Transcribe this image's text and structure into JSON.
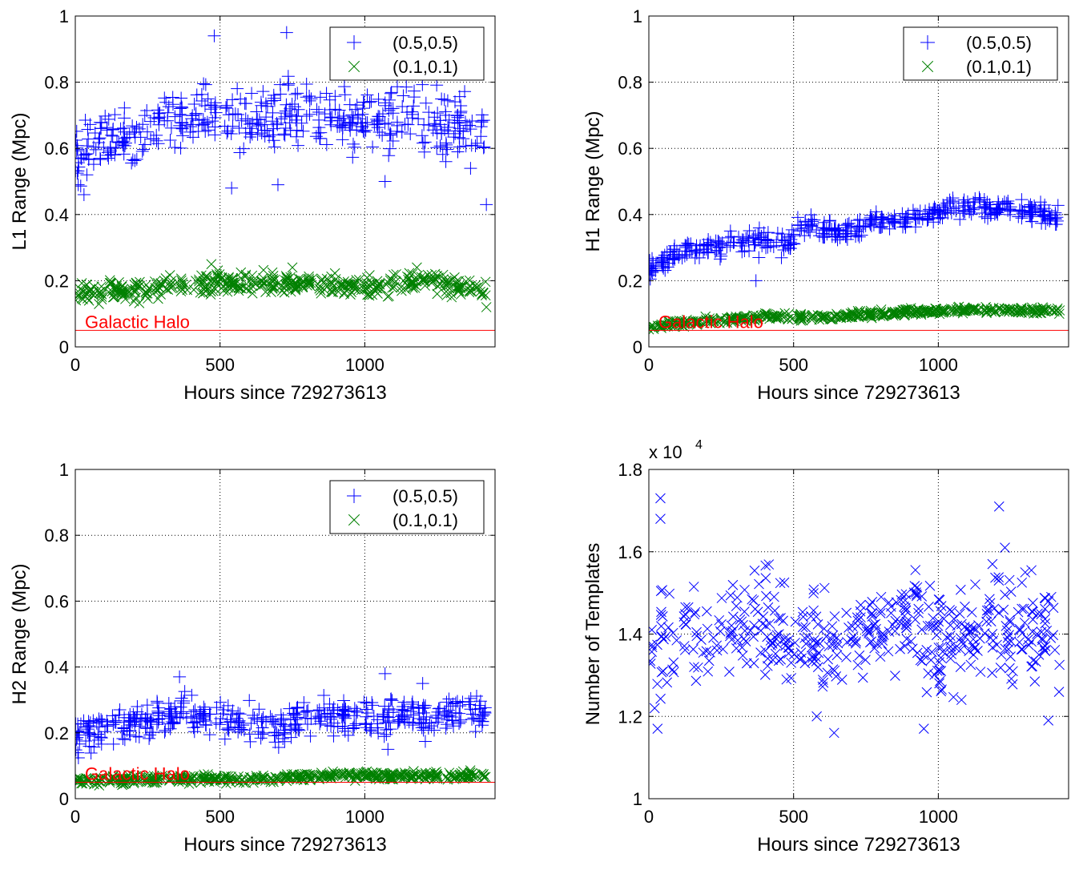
{
  "chart_data": [
    {
      "id": "L1",
      "type": "scatter",
      "xlabel": "Hours since 729273613",
      "ylabel": "L1 Range (Mpc)",
      "xlim": [
        0,
        1450
      ],
      "ylim": [
        0,
        1
      ],
      "xticks": [
        0,
        500,
        1000
      ],
      "yticks": [
        0,
        0.2,
        0.4,
        0.6,
        0.8,
        1
      ],
      "grid": true,
      "legend_position": "top-right",
      "exponent_label": "",
      "reference": {
        "label": "Galactic Halo",
        "value": 0.05,
        "color": "#ff0000"
      },
      "series": [
        {
          "name": "(0.5,0.5)",
          "marker": "plus",
          "color": "#0000ff",
          "anchors": [
            [
              0,
              0.6
            ],
            [
              100,
              0.62
            ],
            [
              200,
              0.63
            ],
            [
              300,
              0.67
            ],
            [
              400,
              0.72
            ],
            [
              500,
              0.7
            ],
            [
              600,
              0.67
            ],
            [
              700,
              0.7
            ],
            [
              800,
              0.73
            ],
            [
              900,
              0.7
            ],
            [
              1000,
              0.68
            ],
            [
              1100,
              0.71
            ],
            [
              1200,
              0.7
            ],
            [
              1300,
              0.67
            ],
            [
              1420,
              0.64
            ]
          ],
          "spread": 0.08,
          "samples": [
            [
              10,
              0.49
            ],
            [
              30,
              0.46
            ],
            [
              40,
              0.52
            ],
            [
              480,
              0.94
            ],
            [
              730,
              0.95
            ],
            [
              540,
              0.48
            ],
            [
              700,
              0.49
            ],
            [
              1070,
              0.5
            ],
            [
              1280,
              0.56
            ],
            [
              1420,
              0.43
            ]
          ]
        },
        {
          "name": "(0.1,0.1)",
          "marker": "x",
          "color": "#008000",
          "anchors": [
            [
              0,
              0.16
            ],
            [
              200,
              0.17
            ],
            [
              400,
              0.19
            ],
            [
              600,
              0.19
            ],
            [
              800,
              0.19
            ],
            [
              1000,
              0.18
            ],
            [
              1200,
              0.2
            ],
            [
              1420,
              0.17
            ]
          ],
          "spread": 0.025,
          "samples": [
            [
              470,
              0.25
            ],
            [
              750,
              0.24
            ],
            [
              1180,
              0.24
            ],
            [
              1300,
              0.15
            ],
            [
              1420,
              0.12
            ]
          ]
        }
      ]
    },
    {
      "id": "H1",
      "type": "scatter",
      "xlabel": "Hours since 729273613",
      "ylabel": "H1 Range (Mpc)",
      "xlim": [
        0,
        1450
      ],
      "ylim": [
        0,
        1
      ],
      "xticks": [
        0,
        500,
        1000
      ],
      "yticks": [
        0,
        0.2,
        0.4,
        0.6,
        0.8,
        1
      ],
      "grid": true,
      "legend_position": "top-right",
      "exponent_label": "",
      "reference": {
        "label": "Galactic Halo",
        "value": 0.05,
        "color": "#ff0000"
      },
      "series": [
        {
          "name": "(0.5,0.5)",
          "marker": "plus",
          "color": "#0000ff",
          "anchors": [
            [
              0,
              0.24
            ],
            [
              100,
              0.28
            ],
            [
              200,
              0.3
            ],
            [
              300,
              0.31
            ],
            [
              380,
              0.33
            ],
            [
              480,
              0.3
            ],
            [
              520,
              0.37
            ],
            [
              600,
              0.35
            ],
            [
              700,
              0.35
            ],
            [
              800,
              0.38
            ],
            [
              900,
              0.38
            ],
            [
              1000,
              0.41
            ],
            [
              1100,
              0.42
            ],
            [
              1200,
              0.42
            ],
            [
              1300,
              0.41
            ],
            [
              1420,
              0.39
            ]
          ],
          "spread": 0.025,
          "samples": [
            [
              370,
              0.2
            ],
            [
              380,
              0.27
            ],
            [
              1050,
              0.45
            ]
          ]
        },
        {
          "name": "(0.1,0.1)",
          "marker": "x",
          "color": "#008000",
          "anchors": [
            [
              0,
              0.06
            ],
            [
              200,
              0.08
            ],
            [
              400,
              0.09
            ],
            [
              600,
              0.09
            ],
            [
              800,
              0.1
            ],
            [
              1000,
              0.11
            ],
            [
              1200,
              0.11
            ],
            [
              1420,
              0.11
            ]
          ],
          "spread": 0.008,
          "samples": []
        }
      ]
    },
    {
      "id": "H2",
      "type": "scatter",
      "xlabel": "Hours since 729273613",
      "ylabel": "H2 Range (Mpc)",
      "xlim": [
        0,
        1450
      ],
      "ylim": [
        0,
        1
      ],
      "xticks": [
        0,
        500,
        1000
      ],
      "yticks": [
        0,
        0.2,
        0.4,
        0.6,
        0.8,
        1
      ],
      "grid": true,
      "legend_position": "top-right",
      "exponent_label": "",
      "reference": {
        "label": "Galactic Halo",
        "value": 0.05,
        "color": "#ff0000"
      },
      "series": [
        {
          "name": "(0.5,0.5)",
          "marker": "plus",
          "color": "#0000ff",
          "anchors": [
            [
              0,
              0.18
            ],
            [
              100,
              0.21
            ],
            [
              200,
              0.23
            ],
            [
              300,
              0.24
            ],
            [
              360,
              0.28
            ],
            [
              450,
              0.24
            ],
            [
              550,
              0.24
            ],
            [
              700,
              0.22
            ],
            [
              800,
              0.25
            ],
            [
              900,
              0.24
            ],
            [
              1000,
              0.25
            ],
            [
              1100,
              0.26
            ],
            [
              1200,
              0.24
            ],
            [
              1300,
              0.25
            ],
            [
              1420,
              0.26
            ]
          ],
          "spread": 0.045,
          "samples": [
            [
              360,
              0.37
            ],
            [
              1070,
              0.38
            ],
            [
              1080,
              0.15
            ],
            [
              1200,
              0.35
            ]
          ]
        },
        {
          "name": "(0.1,0.1)",
          "marker": "x",
          "color": "#008000",
          "anchors": [
            [
              0,
              0.05
            ],
            [
              300,
              0.06
            ],
            [
              600,
              0.06
            ],
            [
              900,
              0.07
            ],
            [
              1200,
              0.07
            ],
            [
              1420,
              0.07
            ]
          ],
          "spread": 0.01,
          "samples": []
        }
      ]
    },
    {
      "id": "templates",
      "type": "scatter",
      "xlabel": "Hours since 729273613",
      "ylabel": "Number of Templates",
      "xlim": [
        0,
        1450
      ],
      "ylim": [
        1,
        1.8
      ],
      "xticks": [
        0,
        500,
        1000
      ],
      "yticks": [
        1,
        1.2,
        1.4,
        1.6,
        1.8
      ],
      "grid": true,
      "legend_position": "",
      "exponent_label": "x 10",
      "exponent": "4",
      "reference": null,
      "series": [
        {
          "name": "",
          "marker": "x",
          "color": "#0000ff",
          "anchors": [
            [
              0,
              1.38
            ],
            [
              200,
              1.38
            ],
            [
              370,
              1.45
            ],
            [
              500,
              1.38
            ],
            [
              700,
              1.38
            ],
            [
              900,
              1.45
            ],
            [
              1000,
              1.38
            ],
            [
              1200,
              1.42
            ],
            [
              1420,
              1.38
            ]
          ],
          "spread": 0.1,
          "samples": [
            [
              40,
              1.73
            ],
            [
              40,
              1.68
            ],
            [
              30,
              1.17
            ],
            [
              20,
              1.22
            ],
            [
              640,
              1.16
            ],
            [
              580,
              1.2
            ],
            [
              950,
              1.17
            ],
            [
              1080,
              1.24
            ],
            [
              1210,
              1.71
            ],
            [
              1230,
              1.61
            ],
            [
              1380,
              1.19
            ],
            [
              1300,
              1.55
            ]
          ]
        }
      ]
    }
  ]
}
